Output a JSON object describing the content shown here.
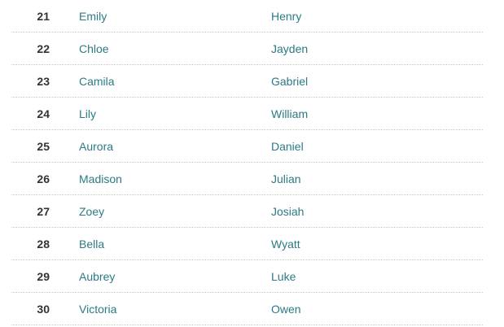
{
  "rows": [
    {
      "rank": "21",
      "girl": "Emily",
      "boy": "Henry"
    },
    {
      "rank": "22",
      "girl": "Chloe",
      "boy": "Jayden"
    },
    {
      "rank": "23",
      "girl": "Camila",
      "boy": "Gabriel"
    },
    {
      "rank": "24",
      "girl": "Lily",
      "boy": "William"
    },
    {
      "rank": "25",
      "girl": "Aurora",
      "boy": "Daniel"
    },
    {
      "rank": "26",
      "girl": "Madison",
      "boy": "Julian"
    },
    {
      "rank": "27",
      "girl": "Zoey",
      "boy": "Josiah"
    },
    {
      "rank": "28",
      "girl": "Bella",
      "boy": "Wyatt"
    },
    {
      "rank": "29",
      "girl": "Aubrey",
      "boy": "Luke"
    },
    {
      "rank": "30",
      "girl": "Victoria",
      "boy": "Owen"
    }
  ],
  "colors": {
    "name_link": "#2b7a86",
    "rank": "#333333"
  }
}
